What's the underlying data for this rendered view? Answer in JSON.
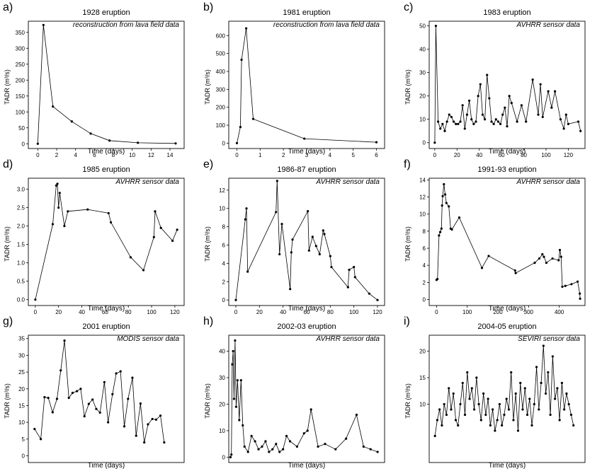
{
  "chart_data": [
    {
      "panel": "a)",
      "type": "line",
      "title": "1928 eruption",
      "annotation": "reconstruction from lava field data",
      "xlabel": "Time (days)",
      "ylabel": "TADR (m³/s)",
      "xlim": [
        -1,
        15.5
      ],
      "ylim": [
        -15,
        385
      ],
      "xticks": [
        0,
        2,
        4,
        6,
        8,
        10,
        12,
        14
      ],
      "yticks": [
        0,
        50,
        100,
        150,
        200,
        250,
        300,
        350
      ],
      "x": [
        0,
        0.6,
        1.6,
        3.6,
        5.6,
        7.6,
        10.6,
        14.6
      ],
      "y": [
        0,
        373,
        117,
        70,
        32,
        10,
        3,
        1
      ]
    },
    {
      "panel": "b)",
      "type": "line",
      "title": "1981 eruption",
      "annotation": "reconstruction from lava field data",
      "xlabel": "Time (days)",
      "ylabel": "TADR (m³/s)",
      "xlim": [
        -0.35,
        6.35
      ],
      "ylim": [
        -30,
        680
      ],
      "xticks": [
        0,
        1,
        2,
        3,
        4,
        5,
        6
      ],
      "yticks": [
        0,
        100,
        200,
        300,
        400,
        500,
        600
      ],
      "x": [
        0,
        0.15,
        0.2,
        0.4,
        0.7,
        2.9,
        6
      ],
      "y": [
        0,
        90,
        465,
        640,
        135,
        25,
        5
      ]
    },
    {
      "panel": "c)",
      "type": "line",
      "title": "1983 eruption",
      "annotation": "AVHRR sensor data",
      "xlabel": "Time (days)",
      "ylabel": "TADR (m³/s)",
      "xlim": [
        -5,
        135
      ],
      "ylim": [
        -2.5,
        52
      ],
      "xticks": [
        0,
        20,
        40,
        60,
        80,
        100,
        120
      ],
      "yticks": [
        0,
        10,
        20,
        30,
        40,
        50
      ],
      "x": [
        0,
        1,
        3,
        5,
        7,
        9,
        11,
        13,
        15,
        17,
        19,
        21,
        23,
        25,
        27,
        29,
        31,
        33,
        35,
        37,
        39,
        41,
        43,
        45,
        47,
        49,
        51,
        53,
        55,
        57,
        59,
        61,
        63,
        65,
        67,
        69,
        74,
        78,
        82,
        88,
        93,
        95,
        97,
        102,
        105,
        108,
        113,
        116,
        118,
        120,
        129,
        131
      ],
      "y": [
        0,
        50,
        9,
        6,
        8,
        5,
        9,
        12,
        11,
        9,
        8,
        8,
        9,
        16,
        6,
        12,
        18,
        10,
        8,
        9,
        20,
        25,
        12,
        10,
        29,
        19,
        9,
        8,
        10,
        9,
        8,
        12,
        15,
        7,
        20,
        17,
        9,
        16,
        9,
        27,
        12,
        25,
        11,
        22,
        15,
        22,
        10,
        6,
        12,
        8,
        9,
        5
      ]
    },
    {
      "panel": "d)",
      "type": "line",
      "title": "1985 eruption",
      "annotation": "AVHRR sensor data",
      "xlabel": "Time (days)",
      "ylabel": "TADR (m³/s)",
      "xlim": [
        -6,
        128
      ],
      "ylim": [
        -0.16,
        3.3
      ],
      "xticks": [
        0,
        20,
        40,
        60,
        80,
        100,
        120
      ],
      "yticks": [
        0.0,
        0.5,
        1.0,
        1.5,
        2.0,
        2.5,
        3.0
      ],
      "x": [
        0,
        15,
        18,
        19,
        20,
        21,
        25,
        28,
        45,
        63,
        65,
        82,
        93,
        102,
        103,
        108,
        118,
        122
      ],
      "y": [
        0,
        2.05,
        3.1,
        3.15,
        2.5,
        2.9,
        2.0,
        2.4,
        2.45,
        2.35,
        2.1,
        1.15,
        0.8,
        1.7,
        2.4,
        1.95,
        1.6,
        1.9
      ]
    },
    {
      "panel": "e)",
      "type": "line",
      "title": "1986-87 eruption",
      "annotation": "AVHRR sensor data",
      "xlabel": "Time (days)",
      "ylabel": "TADR (m³/s)",
      "xlim": [
        -6,
        126
      ],
      "ylim": [
        -0.6,
        13.3
      ],
      "xticks": [
        0,
        20,
        40,
        60,
        80,
        100,
        120
      ],
      "yticks": [
        0,
        2,
        4,
        6,
        8,
        10,
        12
      ],
      "x": [
        0,
        8,
        9,
        10,
        34,
        35,
        37,
        39,
        46,
        47,
        48,
        61,
        62,
        65,
        68,
        71,
        74,
        75,
        80,
        81,
        95,
        96,
        100,
        101,
        113,
        120
      ],
      "y": [
        0,
        8.8,
        10,
        3.1,
        9.6,
        13,
        5,
        8.3,
        1.2,
        5.2,
        6.6,
        9.7,
        5.4,
        6.9,
        5.9,
        5,
        7.6,
        7.2,
        4.8,
        3.6,
        1.4,
        3.3,
        3.6,
        2.5,
        0.7,
        0
      ]
    },
    {
      "panel": "f)",
      "type": "line",
      "title": "1991-93 eruption",
      "annotation": "AVHRR sensor data",
      "xlabel": "Time (days)",
      "ylabel": "TADR (m³/s)",
      "xlim": [
        -24,
        484
      ],
      "ylim": [
        -0.7,
        14.2
      ],
      "xticks": [
        0,
        100,
        200,
        300,
        400
      ],
      "yticks": [
        0,
        2,
        4,
        6,
        8,
        10,
        12,
        14
      ],
      "x": [
        0,
        3,
        8,
        12,
        16,
        18,
        20,
        24,
        28,
        32,
        40,
        46,
        50,
        74,
        148,
        170,
        256,
        258,
        320,
        335,
        345,
        350,
        358,
        378,
        398,
        402,
        406,
        410,
        420,
        440,
        460,
        467,
        468
      ],
      "y": [
        2.3,
        2.4,
        7.5,
        7.9,
        8.3,
        11,
        12.1,
        13.5,
        12.3,
        11.3,
        10.9,
        8.3,
        8.2,
        9.6,
        3.7,
        5.1,
        3.4,
        3.1,
        4.3,
        4.8,
        5.3,
        5,
        4.3,
        4.8,
        4.6,
        5.8,
        5,
        1.5,
        1.6,
        1.8,
        2.1,
        0.7,
        0.1
      ]
    },
    {
      "panel": "g)",
      "type": "line",
      "title": "2001 eruption",
      "annotation": "MODIS sensor data",
      "xlabel": "Time (days)",
      "ylabel": "TADR (m³/s)",
      "xlim": [
        -1,
        24
      ],
      "ylim": [
        -2,
        36
      ],
      "xticks": [],
      "yticks": [
        0,
        5,
        10,
        15,
        20,
        25,
        30,
        35
      ],
      "x": [
        0,
        1,
        1.6,
        2.2,
        2.9,
        3.6,
        4.2,
        4.8,
        5.5,
        6.1,
        6.8,
        7.4,
        8,
        8.7,
        9.3,
        9.9,
        10.5,
        11.2,
        11.8,
        12.5,
        13.1,
        13.8,
        14.4,
        15,
        15.7,
        16.3,
        17,
        17.6,
        18.2,
        18.9,
        19.5,
        20.2,
        20.8
      ],
      "y": [
        8,
        5,
        17.5,
        17.3,
        13,
        17,
        25.5,
        34.4,
        17.3,
        18.8,
        19.3,
        20,
        11.8,
        15.5,
        16.8,
        14,
        12.9,
        22,
        10,
        18.4,
        24.6,
        25.2,
        8.8,
        17,
        23.3,
        6,
        15.6,
        4,
        9.4,
        11,
        10.8,
        12,
        4
      ]
    },
    {
      "panel": "h)",
      "type": "line",
      "title": "2002-03 eruption",
      "annotation": "AVHRR sensor data",
      "xlabel": "Time (days)",
      "ylabel": "TADR (m³/s)",
      "xlim": [
        -1,
        88
      ],
      "ylim": [
        -2,
        46
      ],
      "xticks": [],
      "yticks": [
        0,
        10,
        20,
        30,
        40
      ],
      "x": [
        0,
        0.5,
        1,
        1.5,
        2,
        2.6,
        3.2,
        4,
        5,
        6,
        7,
        8,
        10,
        12,
        14,
        16,
        18,
        20,
        22,
        24,
        26,
        28,
        30,
        32,
        34,
        38,
        42,
        44,
        46,
        50,
        54,
        60,
        66,
        72,
        76,
        80,
        84
      ],
      "y": [
        0,
        1,
        35,
        40,
        22,
        44,
        19,
        29,
        14,
        29,
        12,
        4,
        2,
        8,
        6,
        3,
        4,
        6,
        2,
        3,
        5,
        2,
        3,
        8,
        6,
        4,
        9,
        10,
        18,
        4,
        5,
        3,
        7,
        16,
        4,
        3,
        2
      ]
    },
    {
      "panel": "i)",
      "type": "line",
      "title": "2004-05 eruption",
      "annotation": "SEVIRI sensor data",
      "xlabel": "Time (days)",
      "ylabel": "TADR (m³/s)",
      "xlim": [
        -5,
        130
      ],
      "ylim": [
        -1,
        23
      ],
      "xticks": [],
      "yticks": [
        10,
        15,
        20
      ],
      "x": [
        0,
        2,
        4,
        6,
        8,
        10,
        12,
        14,
        16,
        18,
        20,
        22,
        24,
        26,
        28,
        30,
        32,
        34,
        36,
        38,
        40,
        42,
        44,
        46,
        48,
        50,
        52,
        54,
        56,
        58,
        60,
        62,
        64,
        66,
        68,
        70,
        72,
        74,
        76,
        78,
        80,
        82,
        84,
        86,
        88,
        90,
        92,
        94,
        96,
        98,
        100,
        102,
        104,
        106,
        108,
        110,
        112,
        114,
        116,
        118,
        120
      ],
      "y": [
        4,
        7,
        9,
        6,
        10,
        8,
        13,
        9,
        12,
        7,
        6,
        10,
        14,
        8,
        16,
        11,
        13,
        9,
        15,
        10,
        7,
        12,
        8,
        11,
        6,
        9,
        5,
        7,
        10,
        6,
        8,
        11,
        9,
        16,
        7,
        12,
        5,
        14,
        9,
        13,
        8,
        11,
        6,
        10,
        17,
        9,
        14,
        21,
        12,
        16,
        8,
        19,
        11,
        13,
        7,
        14,
        9,
        12,
        10,
        8,
        6
      ]
    }
  ]
}
